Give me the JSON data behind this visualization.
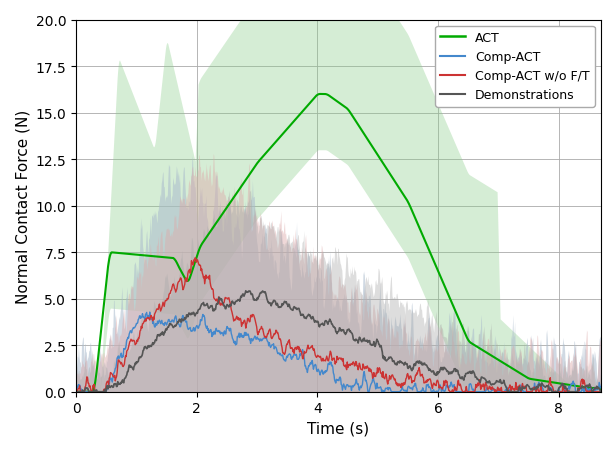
{
  "title": "",
  "xlabel": "Time (s)",
  "ylabel": "Normal Contact Force (N)",
  "xlim": [
    0,
    8.7
  ],
  "ylim": [
    0,
    20
  ],
  "yticks": [
    0.0,
    2.5,
    5.0,
    7.5,
    10.0,
    12.5,
    15.0,
    17.5,
    20.0
  ],
  "xticks": [
    0,
    2,
    4,
    6,
    8
  ],
  "colors": {
    "ACT": "#00aa00",
    "CompACT": "#4488cc",
    "CompACT_wo": "#cc3333",
    "Demo": "#555555"
  },
  "fill_colors": {
    "ACT": "#88cc88",
    "CompACT": "#aabbcc",
    "CompACT_wo": "#ddaaaa",
    "Demo": "#aaaaaa"
  },
  "fill_alpha": 0.55,
  "line_alpha": 1.0,
  "legend_labels": [
    "ACT",
    "Comp-ACT",
    "Comp-ACT w/o F/T",
    "Demonstrations"
  ],
  "seed": 42,
  "n_points": 870,
  "n_trials": 8,
  "figsize": [
    6.16,
    4.52
  ],
  "dpi": 100
}
